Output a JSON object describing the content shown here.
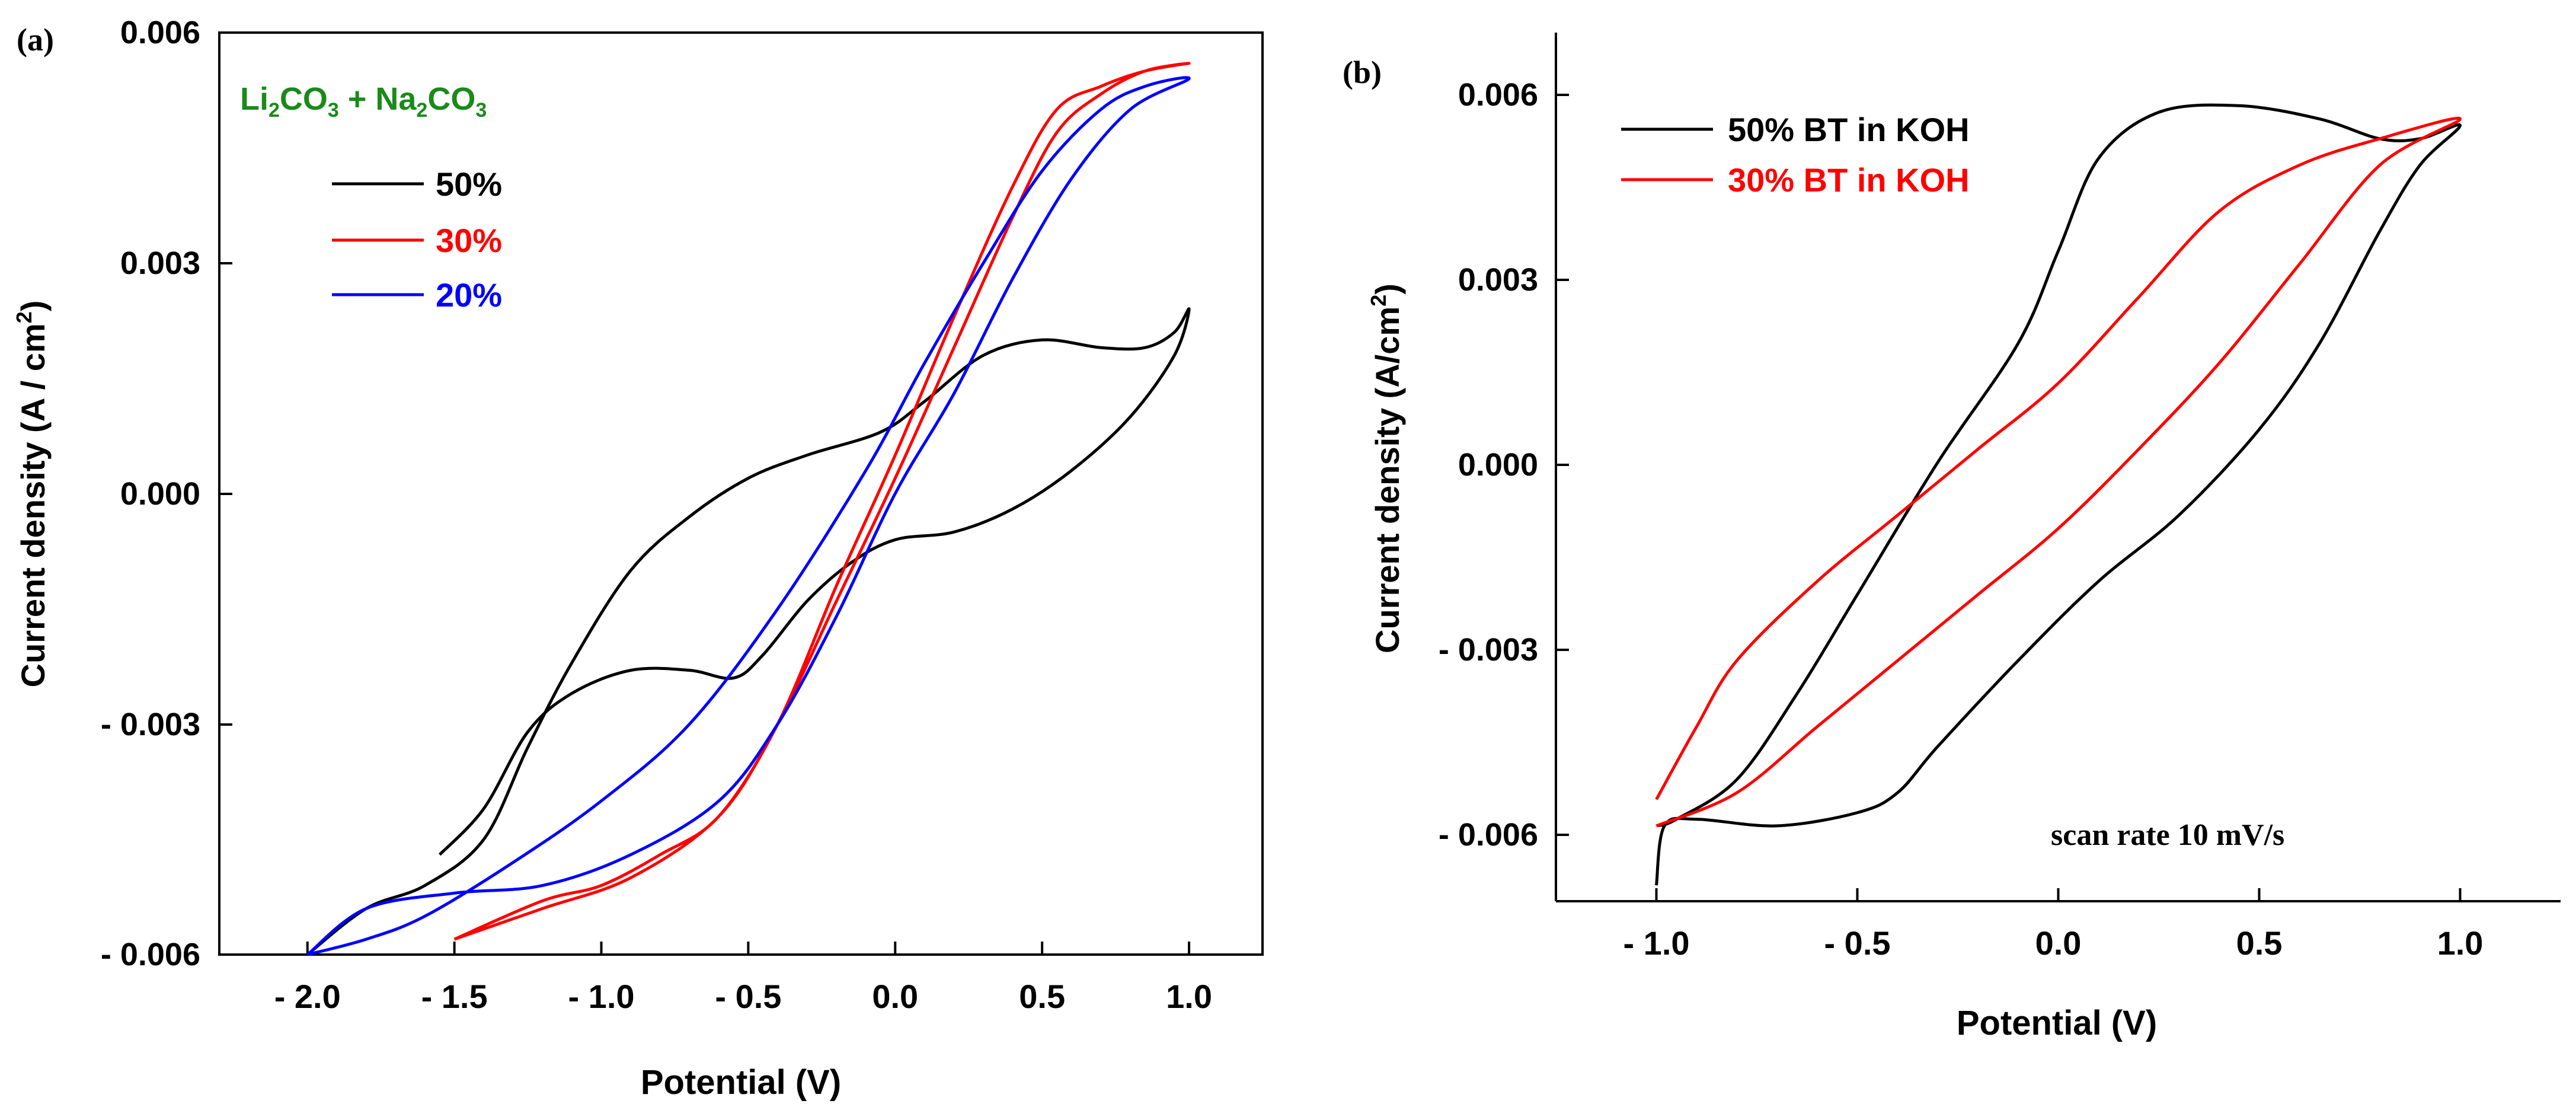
{
  "chart_data": [
    {
      "panel_label": "(a)",
      "type": "line",
      "title": "",
      "annotation": {
        "parts": [
          "Li",
          "2",
          "CO",
          "3",
          " + Na",
          "2",
          "CO",
          "3"
        ],
        "color": "#1a8a1a"
      },
      "xlabel": "Potential (V)",
      "ylabel": "Current density (A / cm",
      "ylabel_sup": "2",
      "ylabel_close": ")",
      "xlim": [
        -2.3,
        1.25
      ],
      "ylim": [
        -0.006,
        0.006
      ],
      "x_ticks": [
        -2.0,
        -1.5,
        -1.0,
        -0.5,
        0.0,
        0.5,
        1.0
      ],
      "x_tick_labels": [
        "- 2.0",
        "- 1.5",
        "- 1.0",
        "- 0.5",
        "0.0",
        "0.5",
        "1.0"
      ],
      "y_ticks": [
        -0.006,
        -0.003,
        0.0,
        0.003,
        0.006
      ],
      "y_tick_labels": [
        "- 0.006",
        "- 0.003",
        "0.000",
        "0.003",
        "0.006"
      ],
      "legend_position": "top-left",
      "series": [
        {
          "name": "50%",
          "color": "#000000",
          "points": [
            [
              -1.55,
              -0.0047
            ],
            [
              -1.4,
              -0.0041
            ],
            [
              -1.25,
              -0.0031
            ],
            [
              -1.1,
              -0.0026
            ],
            [
              -0.9,
              -0.0023
            ],
            [
              -0.7,
              -0.0023
            ],
            [
              -0.55,
              -0.0024
            ],
            [
              -0.45,
              -0.0021
            ],
            [
              -0.3,
              -0.0014
            ],
            [
              -0.15,
              -0.0009
            ],
            [
              0.0,
              -0.0006
            ],
            [
              0.2,
              -0.0005
            ],
            [
              0.4,
              -0.0002
            ],
            [
              0.6,
              0.0003
            ],
            [
              0.8,
              0.001
            ],
            [
              0.95,
              0.0018
            ],
            [
              1.0,
              0.0024
            ],
            [
              0.95,
              0.0021
            ],
            [
              0.85,
              0.0019
            ],
            [
              0.7,
              0.0019
            ],
            [
              0.5,
              0.002
            ],
            [
              0.3,
              0.0018
            ],
            [
              0.1,
              0.0012
            ],
            [
              -0.05,
              0.0008
            ],
            [
              -0.3,
              0.0005
            ],
            [
              -0.5,
              0.0002
            ],
            [
              -0.7,
              -0.0003
            ],
            [
              -0.9,
              -0.001
            ],
            [
              -1.1,
              -0.0022
            ],
            [
              -1.25,
              -0.0033
            ],
            [
              -1.4,
              -0.0045
            ],
            [
              -1.6,
              -0.0051
            ],
            [
              -1.8,
              -0.0054
            ],
            [
              -2.0,
              -0.006
            ]
          ]
        },
        {
          "name": "30%",
          "color": "#ff0000",
          "points": [
            [
              -1.5,
              -0.0058
            ],
            [
              -1.2,
              -0.0054
            ],
            [
              -0.9,
              -0.005
            ],
            [
              -0.6,
              -0.0042
            ],
            [
              -0.4,
              -0.003
            ],
            [
              -0.2,
              -0.0014
            ],
            [
              0.0,
              0.0002
            ],
            [
              0.2,
              0.0019
            ],
            [
              0.4,
              0.0036
            ],
            [
              0.55,
              0.0047
            ],
            [
              0.7,
              0.0052
            ],
            [
              0.85,
              0.0055
            ],
            [
              1.0,
              0.0056
            ],
            [
              0.85,
              0.0055
            ],
            [
              0.7,
              0.0053
            ],
            [
              0.55,
              0.005
            ],
            [
              0.4,
              0.004
            ],
            [
              0.2,
              0.0023
            ],
            [
              0.0,
              0.0005
            ],
            [
              -0.2,
              -0.0012
            ],
            [
              -0.4,
              -0.003
            ],
            [
              -0.6,
              -0.0042
            ],
            [
              -0.8,
              -0.0047
            ],
            [
              -1.0,
              -0.0051
            ],
            [
              -1.2,
              -0.0053
            ],
            [
              -1.5,
              -0.0058
            ]
          ]
        },
        {
          "name": "20%",
          "color": "#0000ff",
          "points": [
            [
              -2.0,
              -0.006
            ],
            [
              -1.8,
              -0.0054
            ],
            [
              -1.5,
              -0.0052
            ],
            [
              -1.2,
              -0.0051
            ],
            [
              -0.9,
              -0.0047
            ],
            [
              -0.6,
              -0.004
            ],
            [
              -0.4,
              -0.003
            ],
            [
              -0.2,
              -0.0016
            ],
            [
              0.0,
              0.0
            ],
            [
              0.2,
              0.0013
            ],
            [
              0.4,
              0.0028
            ],
            [
              0.6,
              0.0041
            ],
            [
              0.8,
              0.005
            ],
            [
              1.0,
              0.0054
            ],
            [
              0.85,
              0.0053
            ],
            [
              0.7,
              0.005
            ],
            [
              0.5,
              0.0042
            ],
            [
              0.3,
              0.003
            ],
            [
              0.1,
              0.0017
            ],
            [
              -0.1,
              0.0003
            ],
            [
              -0.4,
              -0.0015
            ],
            [
              -0.7,
              -0.003
            ],
            [
              -1.0,
              -0.004
            ],
            [
              -1.3,
              -0.0048
            ],
            [
              -1.6,
              -0.0055
            ],
            [
              -1.8,
              -0.0058
            ],
            [
              -2.0,
              -0.006
            ]
          ]
        }
      ]
    },
    {
      "panel_label": "(b)",
      "type": "line",
      "title": "",
      "annotation_text": "scan rate 10 mV/s",
      "xlabel": "Potential (V)",
      "ylabel": "Current density (A/cm",
      "ylabel_sup": "2",
      "ylabel_close": ")",
      "xlim": [
        -1.25,
        1.25
      ],
      "ylim": [
        -0.007,
        0.007
      ],
      "x_ticks": [
        -1.0,
        -0.5,
        0.0,
        0.5,
        1.0
      ],
      "x_tick_labels": [
        "- 1.0",
        "- 0.5",
        "0.0",
        "0.5",
        "1.0"
      ],
      "y_ticks": [
        -0.006,
        -0.003,
        0.0,
        0.003,
        0.006
      ],
      "y_tick_labels": [
        "- 0.006",
        "- 0.003",
        "0.000",
        "0.003",
        "0.006"
      ],
      "legend_position": "top-left",
      "series": [
        {
          "name": "50% BT in KOH",
          "color": "#000000",
          "points": [
            [
              -1.0,
              -0.0064
            ],
            [
              -0.98,
              -0.0055
            ],
            [
              -0.9,
              -0.0054
            ],
            [
              -0.7,
              -0.0055
            ],
            [
              -0.5,
              -0.0053
            ],
            [
              -0.4,
              -0.005
            ],
            [
              -0.3,
              -0.0043
            ],
            [
              -0.1,
              -0.003
            ],
            [
              0.1,
              -0.0018
            ],
            [
              0.3,
              -0.0008
            ],
            [
              0.5,
              0.0005
            ],
            [
              0.65,
              0.0018
            ],
            [
              0.8,
              0.0035
            ],
            [
              0.9,
              0.0045
            ],
            [
              1.0,
              0.0051
            ],
            [
              0.9,
              0.0049
            ],
            [
              0.8,
              0.0049
            ],
            [
              0.65,
              0.0052
            ],
            [
              0.45,
              0.0054
            ],
            [
              0.25,
              0.0053
            ],
            [
              0.1,
              0.0046
            ],
            [
              0.0,
              0.0032
            ],
            [
              -0.1,
              0.0018
            ],
            [
              -0.3,
              0.0
            ],
            [
              -0.5,
              -0.002
            ],
            [
              -0.65,
              -0.0035
            ],
            [
              -0.8,
              -0.0048
            ],
            [
              -0.95,
              -0.0054
            ],
            [
              -1.0,
              -0.0055
            ]
          ]
        },
        {
          "name": "30% BT in KOH",
          "color": "#ff0000",
          "points": [
            [
              -1.0,
              -0.0055
            ],
            [
              -0.8,
              -0.005
            ],
            [
              -0.6,
              -0.004
            ],
            [
              -0.4,
              -0.003
            ],
            [
              -0.2,
              -0.002
            ],
            [
              0.0,
              -0.001
            ],
            [
              0.2,
              0.0002
            ],
            [
              0.4,
              0.0015
            ],
            [
              0.6,
              0.003
            ],
            [
              0.8,
              0.0045
            ],
            [
              1.0,
              0.0052
            ],
            [
              0.8,
              0.0049
            ],
            [
              0.6,
              0.0045
            ],
            [
              0.4,
              0.0038
            ],
            [
              0.2,
              0.0025
            ],
            [
              0.0,
              0.0012
            ],
            [
              -0.2,
              0.0002
            ],
            [
              -0.4,
              -0.0008
            ],
            [
              -0.6,
              -0.0018
            ],
            [
              -0.8,
              -0.003
            ],
            [
              -0.9,
              -0.004
            ],
            [
              -1.0,
              -0.0051
            ]
          ]
        }
      ]
    }
  ]
}
